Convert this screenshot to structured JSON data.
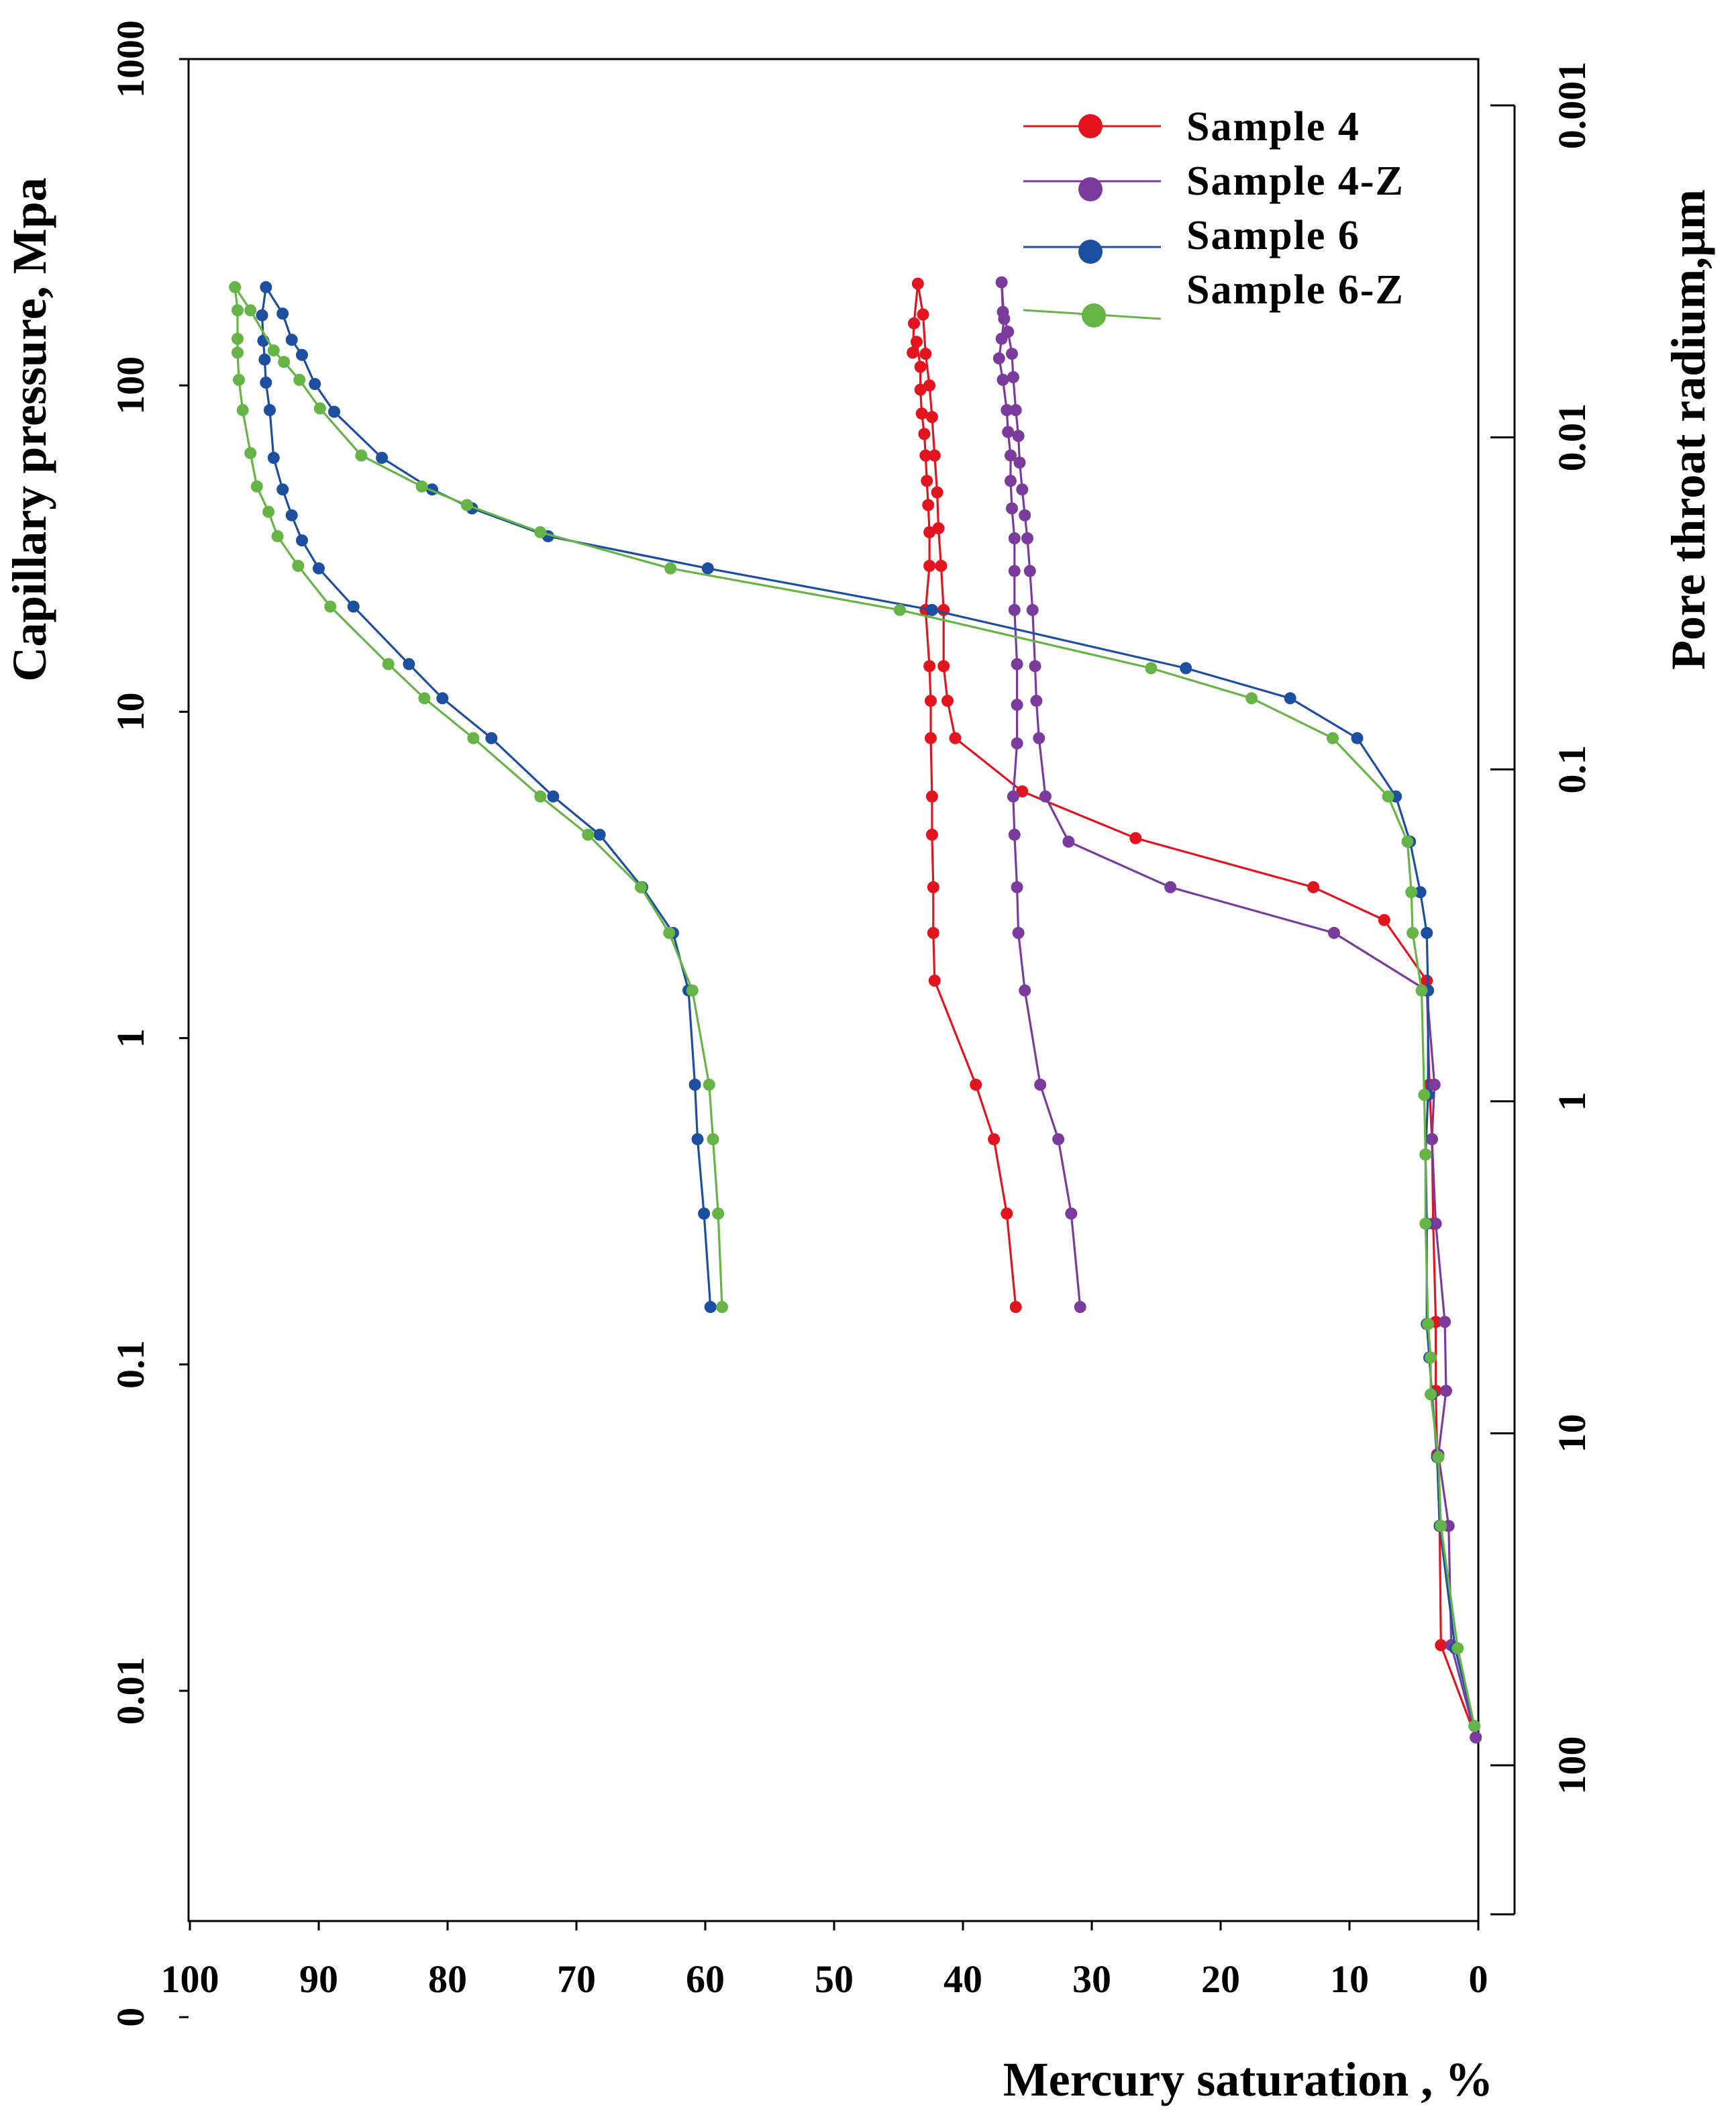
{
  "chart_data": {
    "type": "line",
    "title": "",
    "xlabel": "Mercury saturation , %",
    "ylabel": "Capillary pressure, Mpa",
    "y2label": "Pore throat radium,μm",
    "x_reversed": true,
    "xlim": [
      100,
      0
    ],
    "y_scale": "log",
    "x_ticks": [
      "100",
      "90",
      "80",
      "70",
      "60",
      "50",
      "40",
      "30",
      "20",
      "10",
      "0"
    ],
    "y_ticks": [
      {
        "label": "1000",
        "value": 1000
      },
      {
        "label": "100",
        "value": 100
      },
      {
        "label": "10",
        "value": 10
      },
      {
        "label": "1",
        "value": 1
      },
      {
        "label": "0.1",
        "value": 0.1
      },
      {
        "label": "0.01",
        "value": 0.01
      },
      {
        "label": "0",
        "value": 0.001
      }
    ],
    "y2_ticks": [
      {
        "label": "0.001",
        "value": 0.001
      },
      {
        "label": "0.01",
        "value": 0.01
      },
      {
        "label": "0.1",
        "value": 0.1
      },
      {
        "label": "1",
        "value": 1
      },
      {
        "label": "10",
        "value": 10
      },
      {
        "label": "100",
        "value": 100
      }
    ],
    "legend_position": "top-right",
    "series": [
      {
        "name": "Sample 4",
        "color": "#e3141e",
        "points": [
          [
            0.2,
            0.0072
          ],
          [
            2.9,
            0.0138
          ],
          [
            3.0,
            0.032
          ],
          [
            3.2,
            0.053
          ],
          [
            3.3,
            0.083
          ],
          [
            3.3,
            0.135
          ],
          [
            3.5,
            0.27
          ],
          [
            3.6,
            0.49
          ],
          [
            3.8,
            0.72
          ],
          [
            4.0,
            1.5
          ],
          [
            7.3,
            2.3
          ],
          [
            12.8,
            2.9
          ],
          [
            26.6,
            4.1
          ],
          [
            35.4,
            5.7
          ],
          [
            40.6,
            8.3
          ],
          [
            41.2,
            10.8
          ],
          [
            41.5,
            13.8
          ],
          [
            41.5,
            20.5
          ],
          [
            41.7,
            28.0
          ],
          [
            41.9,
            36.5
          ],
          [
            42.0,
            47.0
          ],
          [
            42.2,
            61.0
          ],
          [
            42.4,
            80.0
          ],
          [
            42.6,
            100.0
          ],
          [
            42.9,
            125.0
          ],
          [
            43.1,
            165.0
          ],
          [
            43.5,
            205.0
          ],
          [
            43.8,
            155.0
          ],
          [
            43.9,
            126.0
          ],
          [
            43.6,
            136.0
          ],
          [
            43.3,
            114.0
          ],
          [
            43.3,
            97.0
          ],
          [
            43.2,
            82.0
          ],
          [
            43.0,
            71.0
          ],
          [
            42.9,
            61.0
          ],
          [
            42.8,
            51.0
          ],
          [
            42.7,
            43.0
          ],
          [
            42.6,
            35.5
          ],
          [
            42.6,
            28.0
          ],
          [
            42.9,
            20.5
          ],
          [
            42.6,
            13.8
          ],
          [
            42.5,
            10.8
          ],
          [
            42.5,
            8.3
          ],
          [
            42.4,
            5.5
          ],
          [
            42.4,
            4.2
          ],
          [
            42.3,
            2.9
          ],
          [
            42.3,
            2.1
          ],
          [
            42.2,
            1.5
          ],
          [
            39.0,
            0.72
          ],
          [
            37.6,
            0.49
          ],
          [
            36.6,
            0.29
          ],
          [
            35.9,
            0.15
          ]
        ]
      },
      {
        "name": "Sample 4-Z",
        "color": "#7b3b9c",
        "points": [
          [
            0.2,
            0.0072
          ],
          [
            2.1,
            0.0138
          ],
          [
            2.3,
            0.032
          ],
          [
            3.1,
            0.053
          ],
          [
            2.5,
            0.083
          ],
          [
            2.6,
            0.135
          ],
          [
            3.3,
            0.27
          ],
          [
            3.6,
            0.49
          ],
          [
            3.4,
            0.72
          ],
          [
            4.0,
            1.4
          ],
          [
            11.2,
            2.1
          ],
          [
            23.9,
            2.9
          ],
          [
            31.8,
            4.0
          ],
          [
            33.6,
            5.5
          ],
          [
            34.1,
            8.3
          ],
          [
            34.3,
            10.8
          ],
          [
            34.4,
            13.8
          ],
          [
            34.6,
            20.5
          ],
          [
            34.8,
            27.0
          ],
          [
            35.0,
            34.0
          ],
          [
            35.2,
            40.0
          ],
          [
            35.4,
            48.0
          ],
          [
            35.6,
            58.0
          ],
          [
            35.7,
            70.0
          ],
          [
            35.9,
            84.0
          ],
          [
            36.1,
            106.0
          ],
          [
            36.2,
            125.0
          ],
          [
            36.5,
            146.0
          ],
          [
            36.9,
            168.0
          ],
          [
            37.0,
            207.0
          ],
          [
            36.8,
            160.0
          ],
          [
            37.0,
            139.0
          ],
          [
            37.2,
            121.0
          ],
          [
            36.9,
            104.0
          ],
          [
            36.6,
            84.0
          ],
          [
            36.5,
            72.0
          ],
          [
            36.3,
            61.0
          ],
          [
            36.3,
            51.0
          ],
          [
            36.2,
            42.0
          ],
          [
            36.0,
            34.0
          ],
          [
            36.0,
            27.0
          ],
          [
            36.0,
            20.5
          ],
          [
            35.8,
            14.0
          ],
          [
            35.8,
            10.5
          ],
          [
            35.8,
            8.0
          ],
          [
            36.1,
            5.5
          ],
          [
            36.0,
            4.2
          ],
          [
            35.8,
            2.9
          ],
          [
            35.7,
            2.1
          ],
          [
            35.2,
            1.4
          ],
          [
            34.0,
            0.72
          ],
          [
            32.6,
            0.49
          ],
          [
            31.6,
            0.29
          ],
          [
            30.9,
            0.15
          ]
        ]
      },
      {
        "name": "Sample 6",
        "color": "#1c4fa0",
        "points": [
          [
            0.3,
            0.0078
          ],
          [
            1.8,
            0.0135
          ],
          [
            3.0,
            0.032
          ],
          [
            3.2,
            0.052
          ],
          [
            3.6,
            0.081
          ],
          [
            3.8,
            0.105
          ],
          [
            4.0,
            0.133
          ],
          [
            4.0,
            0.27
          ],
          [
            4.1,
            0.44
          ],
          [
            3.9,
            0.67
          ],
          [
            3.9,
            1.4
          ],
          [
            4.0,
            2.1
          ],
          [
            4.5,
            2.8
          ],
          [
            5.3,
            4.0
          ],
          [
            6.4,
            5.5
          ],
          [
            9.4,
            8.3
          ],
          [
            14.6,
            11.0
          ],
          [
            22.7,
            13.6
          ],
          [
            42.4,
            20.5
          ],
          [
            59.8,
            27.5
          ],
          [
            72.2,
            34.5
          ],
          [
            78.1,
            42.0
          ],
          [
            81.2,
            48.0
          ],
          [
            85.1,
            60.0
          ],
          [
            88.8,
            83.0
          ],
          [
            90.3,
            101.0
          ],
          [
            91.3,
            124.0
          ],
          [
            92.1,
            138.0
          ],
          [
            92.8,
            166.0
          ],
          [
            94.1,
            200.0
          ],
          [
            94.4,
            164.0
          ],
          [
            94.3,
            137.0
          ],
          [
            94.2,
            120.0
          ],
          [
            94.1,
            102.0
          ],
          [
            93.8,
            84.0
          ],
          [
            93.5,
            60.0
          ],
          [
            92.8,
            48.0
          ],
          [
            92.1,
            40.0
          ],
          [
            91.3,
            33.5
          ],
          [
            90.0,
            27.5
          ],
          [
            87.3,
            21.0
          ],
          [
            83.0,
            14.0
          ],
          [
            80.4,
            11.0
          ],
          [
            76.6,
            8.3
          ],
          [
            71.8,
            5.5
          ],
          [
            68.2,
            4.2
          ],
          [
            64.9,
            2.9
          ],
          [
            62.5,
            2.1
          ],
          [
            61.3,
            1.4
          ],
          [
            60.8,
            0.72
          ],
          [
            60.6,
            0.49
          ],
          [
            60.1,
            0.29
          ],
          [
            59.6,
            0.15
          ]
        ]
      },
      {
        "name": "Sample 6-Z",
        "color": "#66b445",
        "points": [
          [
            0.3,
            0.0078
          ],
          [
            1.6,
            0.0135
          ],
          [
            2.9,
            0.032
          ],
          [
            3.1,
            0.052
          ],
          [
            3.7,
            0.081
          ],
          [
            3.7,
            0.105
          ],
          [
            3.9,
            0.133
          ],
          [
            4.1,
            0.27
          ],
          [
            4.1,
            0.44
          ],
          [
            4.2,
            0.67
          ],
          [
            4.4,
            1.4
          ],
          [
            5.1,
            2.1
          ],
          [
            5.2,
            2.8
          ],
          [
            5.5,
            4.0
          ],
          [
            7.0,
            5.5
          ],
          [
            11.3,
            8.3
          ],
          [
            17.6,
            11.0
          ],
          [
            25.4,
            13.6
          ],
          [
            44.9,
            20.5
          ],
          [
            62.7,
            27.5
          ],
          [
            72.8,
            35.5
          ],
          [
            78.5,
            43.0
          ],
          [
            82.0,
            49.0
          ],
          [
            86.7,
            61.0
          ],
          [
            89.9,
            85.0
          ],
          [
            91.5,
            104.0
          ],
          [
            92.7,
            118.0
          ],
          [
            93.5,
            128.0
          ],
          [
            95.3,
            170.0
          ],
          [
            96.5,
            200.0
          ],
          [
            96.3,
            170.0
          ],
          [
            96.3,
            139.0
          ],
          [
            96.3,
            126.0
          ],
          [
            96.2,
            104.0
          ],
          [
            95.9,
            84.0
          ],
          [
            95.3,
            62.0
          ],
          [
            94.8,
            49.0
          ],
          [
            93.9,
            41.0
          ],
          [
            93.2,
            34.5
          ],
          [
            91.6,
            28.0
          ],
          [
            89.1,
            21.0
          ],
          [
            84.6,
            14.0
          ],
          [
            81.8,
            11.0
          ],
          [
            78.0,
            8.3
          ],
          [
            72.8,
            5.5
          ],
          [
            69.1,
            4.2
          ],
          [
            65.0,
            2.9
          ],
          [
            62.8,
            2.1
          ],
          [
            61.0,
            1.4
          ],
          [
            59.7,
            0.72
          ],
          [
            59.4,
            0.49
          ],
          [
            59.0,
            0.29
          ],
          [
            58.7,
            0.15
          ]
        ]
      }
    ]
  }
}
